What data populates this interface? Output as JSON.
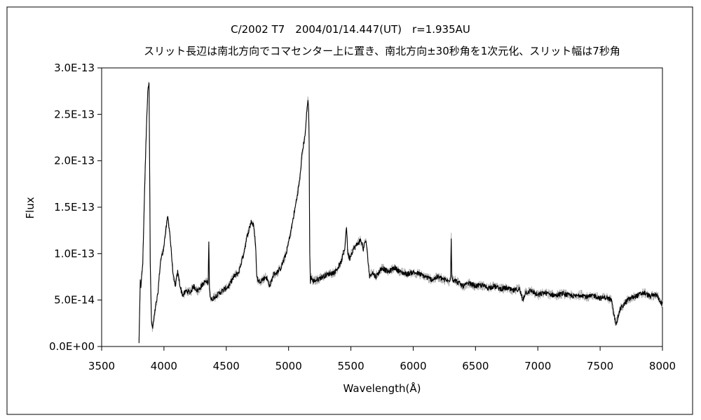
{
  "chart_data": {
    "type": "line",
    "title": "C/2002 T7　2004/01/14.447(UT)　r=1.935AU",
    "subtitle": "スリット長辺は南北方向でコマセンター上に置き、南北方向±30秒角を1次元化、スリット幅は7秒角",
    "xlabel": "Wavelength(Å)",
    "ylabel": "Flux",
    "xlim": [
      3500,
      8000
    ],
    "ylim": [
      0,
      3e-13
    ],
    "xticks": [
      3500,
      4000,
      4500,
      5000,
      5500,
      6000,
      6500,
      7000,
      7500,
      8000
    ],
    "xtick_labels": [
      "3500",
      "4000",
      "4500",
      "5000",
      "5500",
      "6000",
      "6500",
      "7000",
      "7500",
      "8000"
    ],
    "yticks": [
      0,
      5e-14,
      1e-13,
      1.5e-13,
      2e-13,
      2.5e-13,
      3e-13
    ],
    "ytick_labels": [
      "0.0E+00",
      "5.0E-14",
      "1.0E-13",
      "1.5E-13",
      "2.0E-13",
      "2.5E-13",
      "3.0E-13"
    ],
    "grid": false,
    "colors": {
      "series_main": "#000000",
      "series_noise": "#b0b0b0"
    },
    "series": [
      {
        "x": [
          3800,
          3810,
          3815,
          3830,
          3845,
          3860,
          3872,
          3880,
          3885,
          3890,
          3900,
          3910,
          3920,
          3935,
          3950,
          3965,
          3975,
          3990,
          4010,
          4030,
          4045,
          4060,
          4075,
          4090,
          4110,
          4130,
          4150,
          4180,
          4210,
          4240,
          4270,
          4300,
          4330,
          4355,
          4360,
          4365,
          4370,
          4380,
          4420,
          4470,
          4520,
          4560,
          4600,
          4640,
          4670,
          4700,
          4720,
          4735,
          4745,
          4760,
          4790,
          4820,
          4850,
          4880,
          4910,
          4940,
          4980,
          5020,
          5060,
          5090,
          5110,
          5130,
          5145,
          5155,
          5160,
          5165,
          5170,
          5175,
          5180,
          5195,
          5230,
          5270,
          5320,
          5370,
          5420,
          5450,
          5465,
          5475,
          5490,
          5520,
          5550,
          5580,
          5600,
          5620,
          5640,
          5650,
          5670,
          5700,
          5750,
          5800,
          5850,
          5900,
          5950,
          6000,
          6050,
          6100,
          6150,
          6200,
          6250,
          6290,
          6300,
          6305,
          6310,
          6320,
          6350,
          6400,
          6450,
          6500,
          6550,
          6600,
          6650,
          6700,
          6750,
          6800,
          6850,
          6880,
          6900,
          6950,
          7000,
          7050,
          7100,
          7150,
          7200,
          7250,
          7300,
          7350,
          7400,
          7450,
          7500,
          7550,
          7590,
          7610,
          7625,
          7640,
          7660,
          7690,
          7720,
          7760,
          7800,
          7850,
          7900,
          7950,
          8000
        ],
        "values": [
          5e-15,
          7e-14,
          6.5e-14,
          9e-14,
          1.7e-13,
          2.4e-13,
          2.8e-13,
          2.85e-13,
          2e-13,
          9e-14,
          2.5e-14,
          2e-14,
          3e-14,
          4.5e-14,
          5.5e-14,
          8e-14,
          9.5e-14,
          1e-13,
          1.2e-13,
          1.4e-13,
          1.25e-13,
          1e-13,
          7.5e-14,
          6.5e-14,
          8e-14,
          6.5e-14,
          5.5e-14,
          6e-14,
          5.8e-14,
          6.5e-14,
          6e-14,
          6.5e-14,
          7e-14,
          6.8e-14,
          1.15e-13,
          6.5e-14,
          5.5e-14,
          5e-14,
          5.5e-14,
          6e-14,
          6.5e-14,
          7.5e-14,
          8e-14,
          1e-13,
          1.2e-13,
          1.35e-13,
          1.3e-13,
          1.1e-13,
          7.5e-14,
          7e-14,
          7.2e-14,
          7.5e-14,
          6.5e-14,
          7.8e-14,
          8e-14,
          8.5e-14,
          1e-13,
          1.25e-13,
          1.55e-13,
          1.8e-13,
          2.1e-13,
          2.25e-13,
          2.5e-13,
          2.65e-13,
          2.6e-13,
          2.2e-13,
          1e-13,
          7e-14,
          7.5e-14,
          7e-14,
          7.2e-14,
          7.5e-14,
          7.8e-14,
          8e-14,
          9e-14,
          1.05e-13,
          1.3e-13,
          1e-13,
          9.5e-14,
          1.05e-13,
          1.1e-13,
          1.15e-13,
          1.05e-13,
          1.15e-13,
          9e-14,
          7.5e-14,
          8e-14,
          7.5e-14,
          8.5e-14,
          8e-14,
          8.5e-14,
          8e-14,
          7.8e-14,
          8e-14,
          7.8e-14,
          7.5e-14,
          7.2e-14,
          7.5e-14,
          7.2e-14,
          7e-14,
          7.5e-14,
          1.18e-13,
          7.5e-14,
          7.2e-14,
          7e-14,
          6.5e-14,
          6.8e-14,
          6.5e-14,
          6.6e-14,
          6.3e-14,
          6.5e-14,
          6.2e-14,
          6.3e-14,
          6e-14,
          6.2e-14,
          5e-14,
          5.8e-14,
          6e-14,
          5.5e-14,
          5.8e-14,
          5.6e-14,
          5.5e-14,
          5.7e-14,
          5.5e-14,
          5.4e-14,
          5.6e-14,
          5.3e-14,
          5.5e-14,
          5.2e-14,
          5.3e-14,
          5e-14,
          3.5e-14,
          2.5e-14,
          3e-14,
          4e-14,
          4.5e-14,
          5e-14,
          5.3e-14,
          5.5e-14,
          5.8e-14,
          5.4e-14,
          5.6e-14,
          4.5e-14
        ]
      }
    ]
  }
}
